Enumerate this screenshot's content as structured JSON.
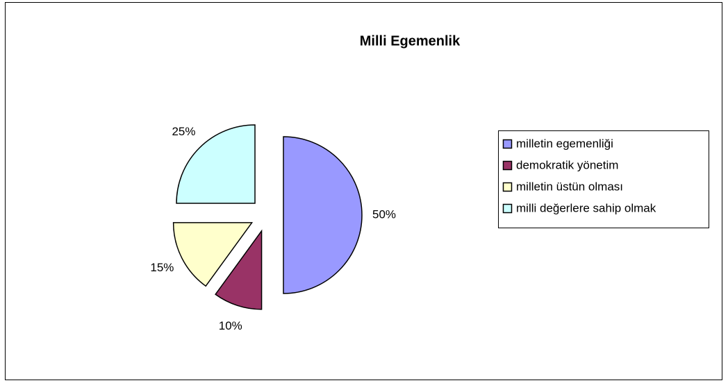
{
  "chart_data": {
    "type": "pie",
    "title": "Milli Egemenlik",
    "categories": [
      "milletin egemenliği",
      "demokratik yönetim",
      "milletin üstün olması",
      "milli değerlere sahip olmak"
    ],
    "values": [
      50,
      10,
      15,
      25
    ],
    "value_labels": [
      "50%",
      "10%",
      "15%",
      "25%"
    ],
    "colors": [
      "#9999ff",
      "#993366",
      "#ffffcc",
      "#ccffff"
    ],
    "legend": "right"
  }
}
